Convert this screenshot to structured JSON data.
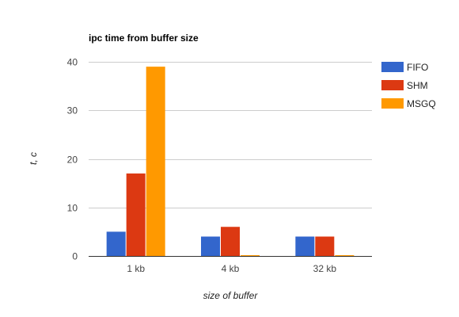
{
  "chart_data": {
    "type": "bar",
    "title": "ipc time from buffer size",
    "xlabel": "size of buffer",
    "ylabel": "t, c",
    "categories": [
      "1 kb",
      "4 kb",
      "32 kb"
    ],
    "ylim": [
      0,
      40
    ],
    "yticks": [
      "0",
      "10",
      "20",
      "30",
      "40"
    ],
    "yticks_values": [
      0,
      10,
      20,
      30,
      40
    ],
    "grid": true,
    "legend_position": "right",
    "series": [
      {
        "name": "FIFO",
        "color": "#3366cc",
        "values": [
          5,
          4,
          4
        ]
      },
      {
        "name": "SHM",
        "color": "#dc3912",
        "values": [
          17,
          6,
          4
        ]
      },
      {
        "name": "MSGQ",
        "color": "#ff9900",
        "values": [
          39,
          0,
          0
        ]
      }
    ]
  }
}
